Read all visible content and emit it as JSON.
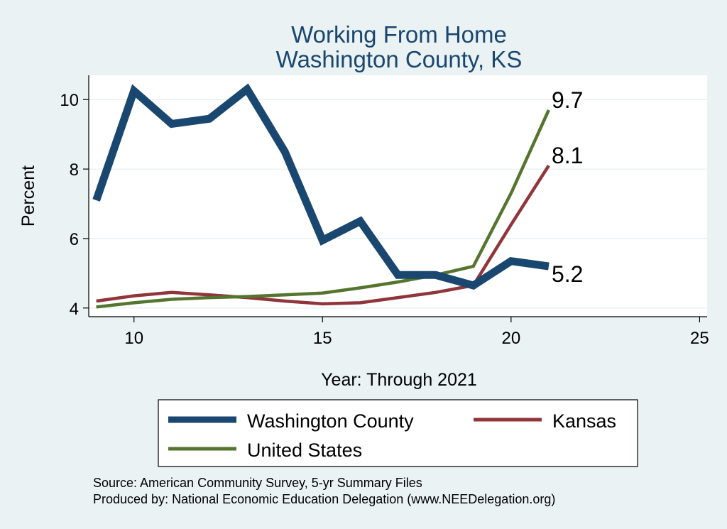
{
  "chart_data": {
    "type": "line",
    "title": "Working From Home",
    "subtitle": "Washington County, KS",
    "xlabel": "Year: Through 2021",
    "ylabel": "Percent",
    "xlim": [
      8.8,
      25.2
    ],
    "ylim": [
      3.75,
      10.7
    ],
    "xticks": [
      10,
      15,
      20,
      25
    ],
    "yticks": [
      4,
      6,
      8,
      10
    ],
    "x": [
      9,
      10,
      11,
      12,
      13,
      14,
      15,
      16,
      17,
      18,
      19,
      20,
      21
    ],
    "series": [
      {
        "name": "Washington County",
        "color": "#1a476f",
        "values": [
          7.1,
          10.25,
          9.3,
          9.45,
          10.3,
          8.5,
          5.95,
          6.5,
          4.95,
          4.95,
          4.65,
          5.35,
          5.2
        ],
        "end_label": "5.2"
      },
      {
        "name": "Kansas",
        "color": "#90353b",
        "values": [
          4.2,
          4.35,
          4.45,
          4.38,
          4.3,
          4.2,
          4.12,
          4.15,
          4.3,
          4.45,
          4.65,
          6.4,
          8.1
        ],
        "end_label": "8.1"
      },
      {
        "name": "United States",
        "color": "#55752f",
        "values": [
          4.03,
          4.15,
          4.25,
          4.3,
          4.33,
          4.38,
          4.43,
          4.58,
          4.75,
          4.95,
          5.2,
          7.3,
          9.7
        ],
        "end_label": "9.7"
      }
    ],
    "grid": true,
    "legend_position": "bottom"
  },
  "source_line": "Source: American Community Survey, 5-yr Summary Files",
  "produced_line": "Produced by: National Economic Education Delegation (www.NEEDelegation.org)"
}
